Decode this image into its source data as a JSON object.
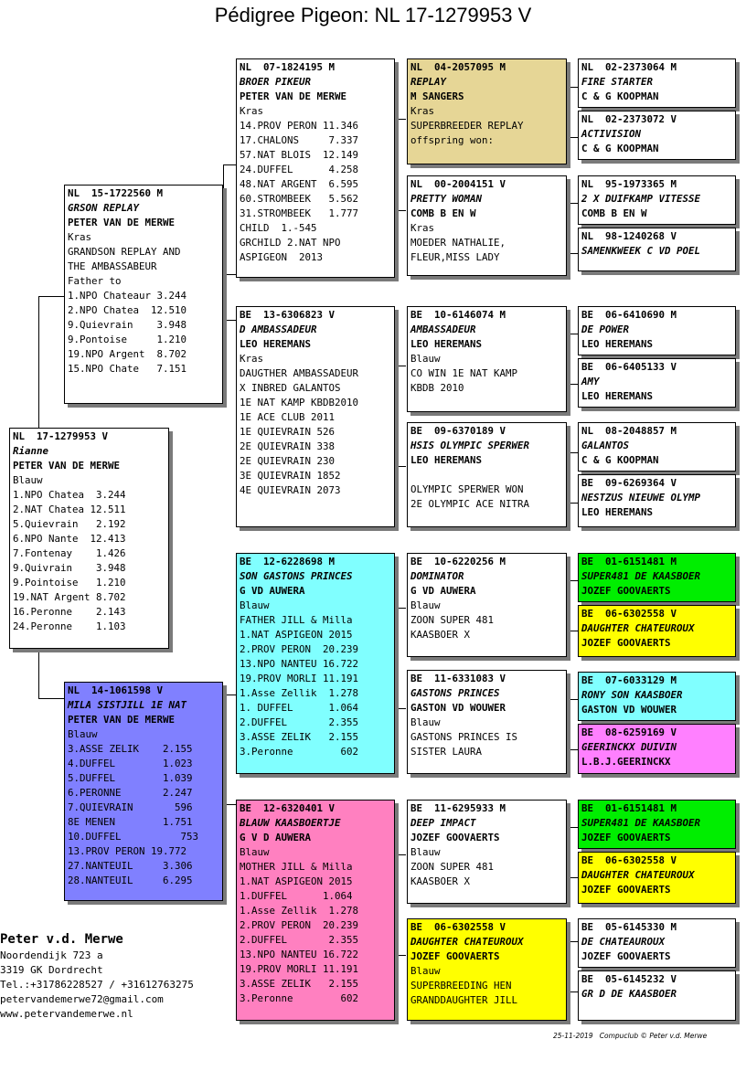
{
  "title": "Pédigree Pigeon: NL  17-1279953 V",
  "birds": {
    "b0": {
      "ring": "NL  17-1279953 V",
      "name": "Rianne",
      "owner": "PETER VAN DE MERWE",
      "lines": [
        "Blauw",
        "1.NPO Chatea  3.244",
        "2.NAT Chatea 12.511",
        "5.Quievrain   2.192",
        "6.NPO Nante  12.413",
        "7.Fontenay    1.426",
        "9.Quivrain    3.948",
        "9.Pointoise   1.210",
        "19.NAT Argent 8.702",
        "16.Peronne    2.143",
        "24.Peronne    1.103"
      ]
    },
    "b1": {
      "ring": "NL  15-1722560 M",
      "name": "GRSON REPLAY",
      "owner": "PETER VAN DE MERWE",
      "lines": [
        "Kras",
        "GRANDSON REPLAY AND",
        "THE AMBASSABEUR",
        "Father to",
        "1.NPO Chateaur 3.244",
        "2.NPO Chatea  12.510",
        "9.Quievrain    3.948",
        "9.Pontoise     1.210",
        "19.NPO Argent  8.702",
        "15.NPO Chate   7.151"
      ]
    },
    "b2": {
      "ring": "NL  14-1061598 V",
      "name": "MILA SISTJILL 1E NAT",
      "owner": "PETER VAN DE MERWE",
      "lines": [
        "Blauw",
        "3.ASSE ZELIK    2.155",
        "4.DUFFEL        1.023",
        "5.DUFFEL        1.039",
        "6.PERONNE       2.247",
        "7.QUIEVRAIN       596",
        "8E MENEN        1.751",
        "10.DUFFEL          753",
        "13.PROV PERON 19.772",
        "27.NANTEUIL     3.306",
        "28.NANTEUIL     6.295"
      ]
    },
    "b3": {
      "ring": "NL  07-1824195 M",
      "name": "BROER PIKEUR",
      "owner": "PETER VAN DE MERWE",
      "lines": [
        "Kras",
        "14.PROV PERON 11.346",
        "17.CHALONS     7.337",
        "57.NAT BLOIS  12.149",
        "24.DUFFEL      4.258",
        "48.NAT ARGENT  6.595",
        "60.STROMBEEK   5.562",
        "31.STROMBEEK   1.777",
        "CHILD  1.-545",
        "GRCHILD 2.NAT NPO",
        "ASPIGEON  2013"
      ]
    },
    "b4": {
      "ring": "BE  13-6306823 V",
      "name": "D AMBASSADEUR",
      "owner": "LEO HEREMANS",
      "lines": [
        "Kras",
        "DAUGTHER AMBASSADEUR",
        "X INBRED GALANTOS",
        "1E NAT KAMP KBDB2010",
        "1E ACE CLUB 2011",
        "1E QUIEVRAIN 526",
        "2E QUIEVRAIN 338",
        "2E QUIEVRAIN 230",
        "3E QUIEVRAIN 1852",
        "4E QUIEVRAIN 2073"
      ]
    },
    "b5": {
      "ring": "BE  12-6228698 M",
      "name": "SON GASTONS PRINCES",
      "owner": "G VD AUWERA",
      "lines": [
        "Blauw",
        "FATHER JILL & Milla",
        "1.NAT ASPIGEON 2015",
        "2.PROV PERON  20.239",
        "13.NPO NANTEU 16.722",
        "19.PROV MORLI 11.191",
        "1.Asse Zellik  1.278",
        "1. DUFFEL      1.064",
        "2.DUFFEL       2.355",
        "3.ASSE ZELIK   2.155",
        "3.Peronne        602"
      ]
    },
    "b6": {
      "ring": "BE  12-6320401 V",
      "name": "BLAUW KAASBOERTJE",
      "owner": "G V D AUWERA",
      "lines": [
        "Blauw",
        "MOTHER JILL & Milla",
        "1.NAT ASPIGEON 2015",
        "1.DUFFEL      1.064",
        "1.Asse Zellik  1.278",
        "2.PROV PERON  20.239",
        "2.DUFFEL       2.355",
        "13.NPO NANTEU 16.722",
        "19.PROV MORLI 11.191",
        "3.ASSE ZELIK   2.155",
        "3.Peronne        602"
      ]
    },
    "b7": {
      "ring": "NL  04-2057095 M",
      "name": "REPLAY",
      "owner": "M SANGERS",
      "lines": [
        "Kras",
        "SUPERBREEDER REPLAY",
        "offspring won:"
      ]
    },
    "b8": {
      "ring": "NL  00-2004151 V",
      "name": "PRETTY WOMAN",
      "owner": "COMB B EN W",
      "lines": [
        "Kras",
        "MOEDER NATHALIE,",
        "FLEUR,MISS LADY"
      ]
    },
    "b9": {
      "ring": "BE  10-6146074 M",
      "name": "AMBASSADEUR",
      "owner": "LEO HEREMANS",
      "lines": [
        "Blauw",
        "CO WIN 1E NAT KAMP",
        "KBDB 2010"
      ]
    },
    "b10": {
      "ring": "BE  09-6370189 V",
      "name": "HSIS OLYMPIC SPERWER",
      "owner": "LEO HEREMANS",
      "lines": [
        "",
        "OLYMPIC SPERWER WON",
        "2E OLYMPIC ACE NITRA"
      ]
    },
    "b11": {
      "ring": "BE  10-6220256 M",
      "name": "DOMINATOR",
      "owner": "G VD AUWERA",
      "lines": [
        "Blauw",
        "ZOON SUPER 481",
        "KAASBOER X"
      ]
    },
    "b12": {
      "ring": "BE  11-6331083 V",
      "name": "GASTONS PRINCES",
      "owner": "GASTON VD WOUWER",
      "lines": [
        "Blauw",
        "GASTONS PRINCES IS",
        "SISTER LAURA"
      ]
    },
    "b13": {
      "ring": "BE  11-6295933 M",
      "name": "DEEP IMPACT",
      "owner": "JOZEF GOOVAERTS",
      "lines": [
        "Blauw",
        "ZOON SUPER 481",
        "KAASBOER X"
      ]
    },
    "b14": {
      "ring": "BE  06-6302558 V",
      "name": "DAUGHTER CHATEUROUX",
      "owner": "JOZEF GOOVAERTS",
      "lines": [
        "Blauw",
        "SUPERBREEDING HEN",
        "GRANDDAUGHTER JILL"
      ]
    },
    "b15": {
      "ring": "NL  02-2373064 M",
      "name": "FIRE STARTER",
      "owner": "C & G KOOPMAN",
      "lines": []
    },
    "b16": {
      "ring": "NL  02-2373072 V",
      "name": "ACTIVISION",
      "owner": "C & G KOOPMAN",
      "lines": []
    },
    "b17": {
      "ring": "NL  95-1973365 M",
      "name": "2 X DUIFKAMP VITESSE",
      "owner": "COMB B EN W",
      "lines": []
    },
    "b18": {
      "ring": "NL  98-1240268 V",
      "name": "SAMENKWEEK C VD POEL",
      "owner": "",
      "lines": []
    },
    "b19": {
      "ring": "BE  06-6410690 M",
      "name": "DE POWER",
      "owner": "LEO HEREMANS",
      "lines": []
    },
    "b20": {
      "ring": "BE  06-6405133 V",
      "name": "AMY",
      "owner": "LEO HEREMANS",
      "lines": []
    },
    "b21": {
      "ring": "NL  08-2048857 M",
      "name": "GALANTOS",
      "owner": "C & G KOOPMAN",
      "lines": []
    },
    "b22": {
      "ring": "BE  09-6269364 V",
      "name": "NESTZUS NIEUWE OLYMP",
      "owner": "LEO HEREMANS",
      "lines": []
    },
    "b23": {
      "ring": "BE  01-6151481 M",
      "name": "SUPER481 DE KAASBOER",
      "owner": "JOZEF GOOVAERTS",
      "lines": []
    },
    "b24": {
      "ring": "BE  06-6302558 V",
      "name": "DAUGHTER CHATEUROUX",
      "owner": "JOZEF GOOVAERTS",
      "lines": []
    },
    "b25": {
      "ring": "BE  07-6033129 M",
      "name": "RONY SON KAASBOER",
      "owner": "GASTON VD WOUWER",
      "lines": []
    },
    "b26": {
      "ring": "BE  08-6259169 V",
      "name": "GEERINCKX DUIVIN",
      "owner": "L.B.J.GEERINCKX",
      "lines": []
    },
    "b27": {
      "ring": "BE  01-6151481 M",
      "name": "SUPER481 DE KAASBOER",
      "owner": "JOZEF GOOVAERTS",
      "lines": []
    },
    "b28": {
      "ring": "BE  06-6302558 V",
      "name": "DAUGHTER CHATEUROUX",
      "owner": "JOZEF GOOVAERTS",
      "lines": []
    },
    "b29": {
      "ring": "BE  05-6145330 M",
      "name": "DE CHATEAUROUX",
      "owner": "JOZEF GOOVAERTS",
      "lines": []
    },
    "b30": {
      "ring": "BE  05-6145232 V",
      "name": "GR D DE KAASBOER",
      "owner": "",
      "lines": []
    }
  },
  "colors": {
    "white": "#ffffff",
    "tan": "#e6d696",
    "cyan": "#80ffff",
    "pink": "#ff80c0",
    "blue": "#8080ff",
    "green": "#00ee00",
    "yellow": "#ffff00",
    "magenta": "#ff80ff"
  },
  "breeder": {
    "name": "Peter v.d. Merwe",
    "address": "Noordendijk 723 a",
    "city": "3319 GK  Dordrecht",
    "phone": "Tel.:+31786228527 / +31612763275",
    "email": "petervandemerwe72@gmail.com",
    "web": "www.petervandemerwe.nl"
  },
  "footer": "25-11-2019   Compuclub © Peter v.d. Merwe"
}
